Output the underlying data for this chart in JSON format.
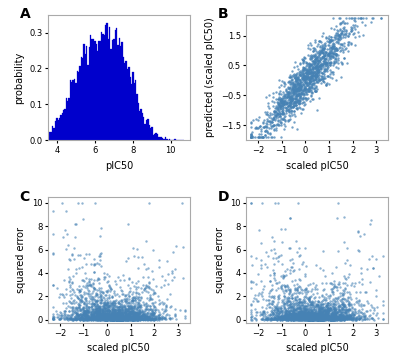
{
  "panel_labels": [
    "A",
    "B",
    "C",
    "D"
  ],
  "hist_color": "#0000CC",
  "scatter_color": "#4682B4",
  "hist_xlabel": "pIC50",
  "hist_ylabel": "probability",
  "hist_xlim": [
    3.5,
    11
  ],
  "hist_ylim": [
    0.0,
    0.35
  ],
  "hist_yticks": [
    0.0,
    0.1,
    0.2,
    0.3
  ],
  "hist_xticks": [
    4,
    6,
    8,
    10
  ],
  "scatter_B_xlabel": "scaled pIC50",
  "scatter_B_ylabel": "predicted (scaled pIC50)",
  "scatter_B_xlim": [
    -2.5,
    3.5
  ],
  "scatter_B_ylim": [
    -2.0,
    2.2
  ],
  "scatter_B_xticks": [
    -2,
    -1,
    0,
    1,
    2,
    3
  ],
  "scatter_B_yticks": [
    -1.5,
    -0.5,
    0.5,
    1.5
  ],
  "scatter_CD_xlabel": "scaled pIC50",
  "scatter_CD_ylabel": "squared error",
  "scatter_CD_xlim": [
    -2.5,
    3.5
  ],
  "scatter_CD_ylim": [
    -0.3,
    10.5
  ],
  "scatter_CD_xticks": [
    -2,
    -1,
    0,
    1,
    2,
    3
  ],
  "scatter_CD_yticks": [
    0,
    2,
    4,
    6,
    8,
    10
  ],
  "n_hist": 8000,
  "n_scatter_b": 1500,
  "n_scatter_cd": 3000,
  "seed": 7,
  "panel_label_fontsize": 10,
  "axis_label_fontsize": 7,
  "tick_fontsize": 6,
  "marker_size_b": 3,
  "marker_size_cd": 3,
  "spine_color": "#aaaaaa"
}
